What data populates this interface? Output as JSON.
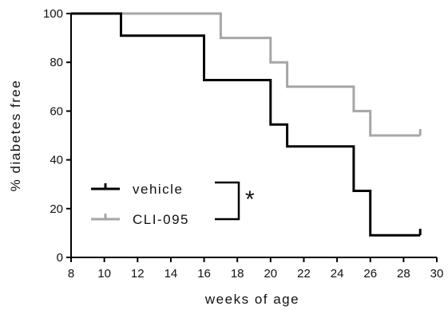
{
  "chart_data": {
    "type": "line",
    "subtype": "kaplan-meier-step",
    "title": "",
    "xlabel": "weeks of age",
    "ylabel": "% diabetes free",
    "xlim": [
      8,
      30
    ],
    "ylim": [
      0,
      100
    ],
    "xticks": [
      8,
      10,
      12,
      14,
      16,
      18,
      20,
      22,
      24,
      26,
      28,
      30
    ],
    "yticks": [
      0,
      20,
      40,
      60,
      80,
      100
    ],
    "grid": false,
    "legend_position": "lower-left",
    "series": [
      {
        "name": "vehicle",
        "color": "#000000",
        "steps": [
          [
            8,
            100
          ],
          [
            11,
            90.9
          ],
          [
            16,
            72.7
          ],
          [
            20,
            54.5
          ],
          [
            21,
            45.5
          ],
          [
            25,
            27.3
          ],
          [
            26,
            9.1
          ]
        ],
        "end_x": 29,
        "censored": [
          [
            29,
            9.1
          ]
        ]
      },
      {
        "name": "CLI-095",
        "color": "#a6a6a6",
        "steps": [
          [
            8,
            100
          ],
          [
            17,
            90
          ],
          [
            20,
            80
          ],
          [
            21,
            70
          ],
          [
            25,
            60
          ],
          [
            26,
            50
          ]
        ],
        "end_x": 29,
        "censored": [
          [
            29,
            50
          ]
        ]
      }
    ],
    "annotation": {
      "text": "*",
      "meaning": "significance bracket between series"
    }
  }
}
